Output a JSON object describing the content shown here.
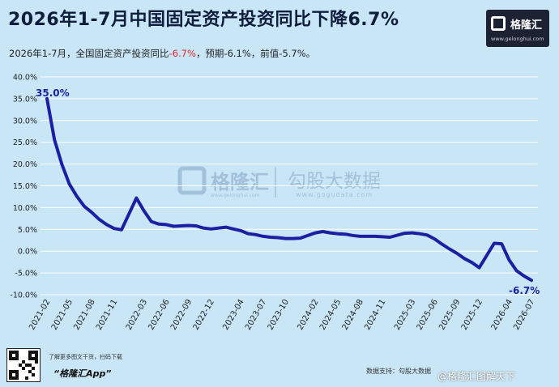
{
  "header": {
    "title": "2026年1-7月中国固定资产投资同比下降6.7%",
    "subtitle_pre": "2026年1-7月，全国固定资产投资同比",
    "subtitle_value": "-6.7%",
    "subtitle_post": "，预期-6.1%，前值-5.7%。"
  },
  "logo": {
    "name": "格隆汇",
    "url": "www.gelonghui.com"
  },
  "watermark": {
    "brand": "格隆汇",
    "brand_url": "www.gelonghui.com",
    "partner": "勾股大数据",
    "partner_url": "www.gogudata.com"
  },
  "footer": {
    "note": "了解更多图文干货，扫码下载",
    "app": "“格隆汇App”",
    "source": "数据支持：勾股大数据",
    "weibo": "@格隆汇图解天下"
  },
  "colors": {
    "line": "#1d1fa3",
    "background": "#c9e6f7",
    "negative": "#e0262a"
  },
  "chart_data": {
    "type": "line",
    "title": "2026年1-7月中国固定资产投资同比下降6.7%",
    "xlabel": "",
    "ylabel": "",
    "ylim": [
      -10,
      40
    ],
    "yticks": [
      -10,
      -5,
      0,
      5,
      10,
      15,
      20,
      25,
      30,
      35,
      40
    ],
    "ytick_labels": [
      "-10.0%",
      "-5.0%",
      "0.0%",
      "5.0%",
      "10.0%",
      "15.0%",
      "20.0%",
      "25.0%",
      "30.0%",
      "35.0%",
      "40.0%"
    ],
    "xtick_labels": [
      "2021-02",
      "2021-05",
      "2021-08",
      "2021-11",
      "2022-03",
      "2022-06",
      "2022-09",
      "2022-12",
      "2023-04",
      "2023-07",
      "2023-10",
      "2024-02",
      "2024-05",
      "2024-08",
      "2024-11",
      "2025-03",
      "2025-06",
      "2025-09",
      "2025-12",
      "2026-04",
      "2026-07"
    ],
    "grid": true,
    "legend": "none",
    "annotations": [
      {
        "x": "2021-02",
        "label": "35.0%"
      },
      {
        "x": "2026-07",
        "label": "-6.7%"
      }
    ],
    "series": [
      {
        "x": [
          "2021-02",
          "2021-03",
          "2021-04",
          "2021-05",
          "2021-06",
          "2021-07",
          "2021-08",
          "2021-09",
          "2021-10",
          "2021-11",
          "2021-12",
          "2022-02",
          "2022-03",
          "2022-04",
          "2022-05",
          "2022-06",
          "2022-07",
          "2022-08",
          "2022-09",
          "2022-10",
          "2022-11",
          "2022-12",
          "2023-02",
          "2023-03",
          "2023-04",
          "2023-05",
          "2023-06",
          "2023-07",
          "2023-08",
          "2023-09",
          "2023-10",
          "2023-11",
          "2023-12",
          "2024-02",
          "2024-03",
          "2024-04",
          "2024-05",
          "2024-06",
          "2024-07",
          "2024-08",
          "2024-09",
          "2024-10",
          "2024-11",
          "2024-12",
          "2025-02",
          "2025-03",
          "2025-04",
          "2025-05",
          "2025-06",
          "2025-07",
          "2025-08",
          "2025-09",
          "2025-10",
          "2025-11",
          "2025-12",
          "2026-02",
          "2026-03",
          "2026-04",
          "2026-05",
          "2026-06",
          "2026-07"
        ],
        "values": [
          35.0,
          25.6,
          19.9,
          15.4,
          12.6,
          10.3,
          8.9,
          7.3,
          6.1,
          5.2,
          4.9,
          12.2,
          9.3,
          6.8,
          6.2,
          6.1,
          5.7,
          5.8,
          5.9,
          5.8,
          5.3,
          5.1,
          5.5,
          5.1,
          4.7,
          4.0,
          3.8,
          3.4,
          3.2,
          3.1,
          2.9,
          2.9,
          3.0,
          4.2,
          4.5,
          4.2,
          4.0,
          3.9,
          3.6,
          3.4,
          3.4,
          3.4,
          3.3,
          3.2,
          4.1,
          4.2,
          4.0,
          3.7,
          2.8,
          1.6,
          0.5,
          -0.5,
          -1.7,
          -2.6,
          -3.8,
          1.8,
          1.7,
          -2.0,
          -4.5,
          -5.7,
          -6.7
        ]
      }
    ]
  }
}
